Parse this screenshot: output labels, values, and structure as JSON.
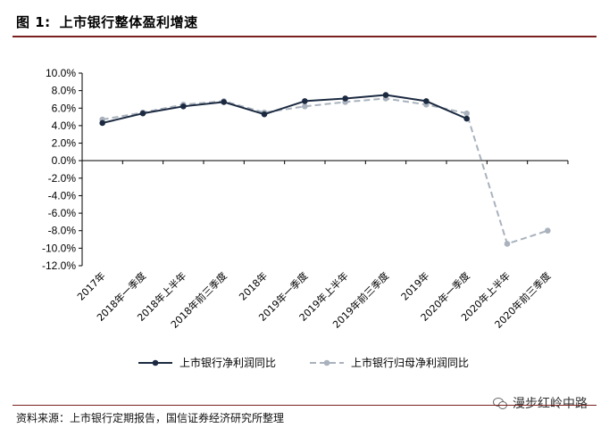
{
  "figure": {
    "number": "图 1:",
    "title": "上市银行整体盈利增速",
    "source": "资料来源：上市银行定期报告，国信证券经济研究所整理",
    "watermark": "漫步红岭中路"
  },
  "chart_data": {
    "type": "line",
    "categories": [
      "2017年",
      "2018年一季度",
      "2018年上半年",
      "2018年前三季度",
      "2018年",
      "2019年一季度",
      "2019年上半年",
      "2019年前三季度",
      "2019年",
      "2020年一季度",
      "2020年上半年",
      "2020年前三季度"
    ],
    "series": [
      {
        "name": "上市银行净利润同比",
        "color": "#1b2a41",
        "dashed": false,
        "values": [
          4.3,
          5.4,
          6.2,
          6.7,
          5.3,
          6.8,
          7.1,
          7.5,
          6.8,
          4.8,
          null,
          null
        ]
      },
      {
        "name": "上市银行归母净利润同比",
        "color": "#a9b2bd",
        "dashed": true,
        "values": [
          4.7,
          5.5,
          6.4,
          6.8,
          5.5,
          6.2,
          6.7,
          7.1,
          6.4,
          5.4,
          -9.5,
          -8.0
        ]
      }
    ],
    "ylim": [
      -12,
      10
    ],
    "yticks": [
      "10.0%",
      "8.0%",
      "6.0%",
      "4.0%",
      "2.0%",
      "0.0%",
      "-2.0%",
      "-4.0%",
      "-6.0%",
      "-8.0%",
      "-10.0%",
      "-12.0%"
    ],
    "grid": false,
    "legend": "bottom"
  }
}
